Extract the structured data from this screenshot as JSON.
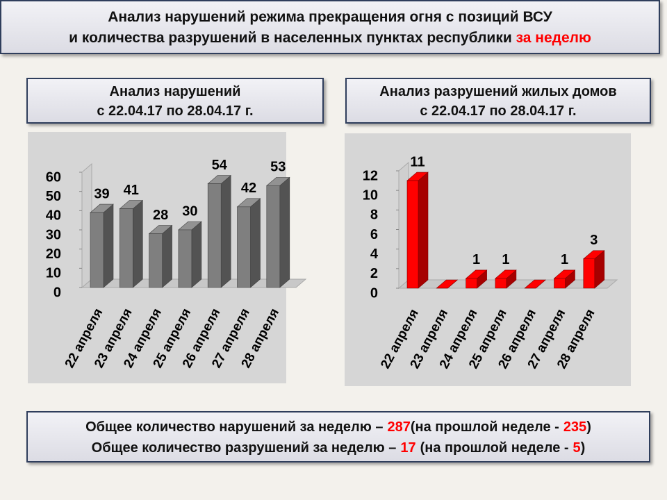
{
  "header": {
    "line1": "Анализ нарушений режима прекращения огня с позиций ВСУ",
    "line2": "и количества разрушений в населенных пунктах республики",
    "line2_highlight": "за неделю"
  },
  "chart_data": [
    {
      "type": "bar",
      "title": "Анализ нарушений",
      "subtitle": "с 22.04.17 по 28.04.17 г.",
      "categories": [
        "22 апреля",
        "23 апреля",
        "24 апреля",
        "25 апреля",
        "26 апреля",
        "27 апреля",
        "28 апреля"
      ],
      "values": [
        39,
        41,
        28,
        30,
        54,
        42,
        53
      ],
      "color": "#7f7f7f",
      "ylim": [
        0,
        60
      ],
      "yticks": [
        0,
        10,
        20,
        30,
        40,
        50,
        60
      ]
    },
    {
      "type": "bar",
      "title": "Анализ разрушений жилых домов",
      "subtitle": "с 22.04.17 по 28.04.17 г.",
      "categories": [
        "22 апреля",
        "23 апреля",
        "24 апреля",
        "25 апреля",
        "26 апреля",
        "27 апреля",
        "28 апреля"
      ],
      "values": [
        11,
        0,
        1,
        1,
        0,
        1,
        3
      ],
      "value_labels": [
        "11",
        null,
        "1",
        "1",
        null,
        "1",
        "3"
      ],
      "color": "#ff0000",
      "ylim": [
        0,
        12
      ],
      "yticks": [
        0,
        2,
        4,
        6,
        8,
        10,
        12
      ]
    }
  ],
  "summary": [
    {
      "text": "Общее количество нарушений за неделю –",
      "value": 287,
      "text2": "(на прошлой неделе -",
      "value2": 235,
      "text3": ")"
    },
    {
      "text": "Общее количество разрушений за неделю –",
      "value": 17,
      "text2": "(на прошлой неделе -",
      "value2": 5,
      "text3": ")"
    }
  ]
}
